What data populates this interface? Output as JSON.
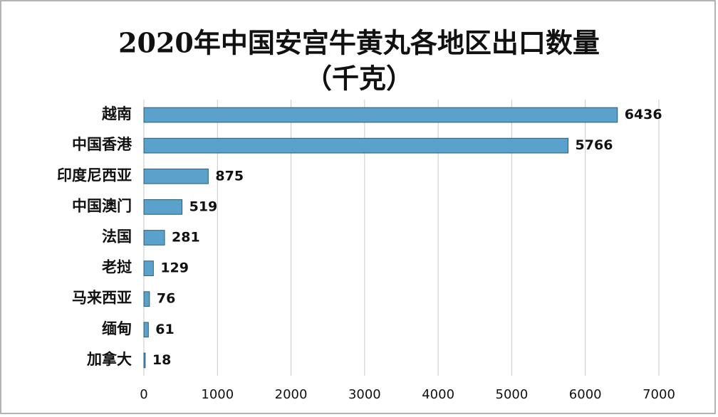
{
  "chart_data": {
    "type": "bar",
    "orientation": "horizontal",
    "title": [
      "2020年中国安宫牛黄丸各地区出口数量",
      "（千克）"
    ],
    "categories": [
      "越南",
      "中国香港",
      "印度尼西亚",
      "中国澳门",
      "法国",
      "老挝",
      "马来西亚",
      "缅甸",
      "加拿大"
    ],
    "values": [
      6436,
      5766,
      875,
      519,
      281,
      129,
      76,
      61,
      18
    ],
    "color": "#5aa2cb",
    "xlim": [
      0,
      7000
    ],
    "xticks": [
      0,
      1000,
      2000,
      3000,
      4000,
      5000,
      6000,
      7000
    ],
    "grid": true
  }
}
